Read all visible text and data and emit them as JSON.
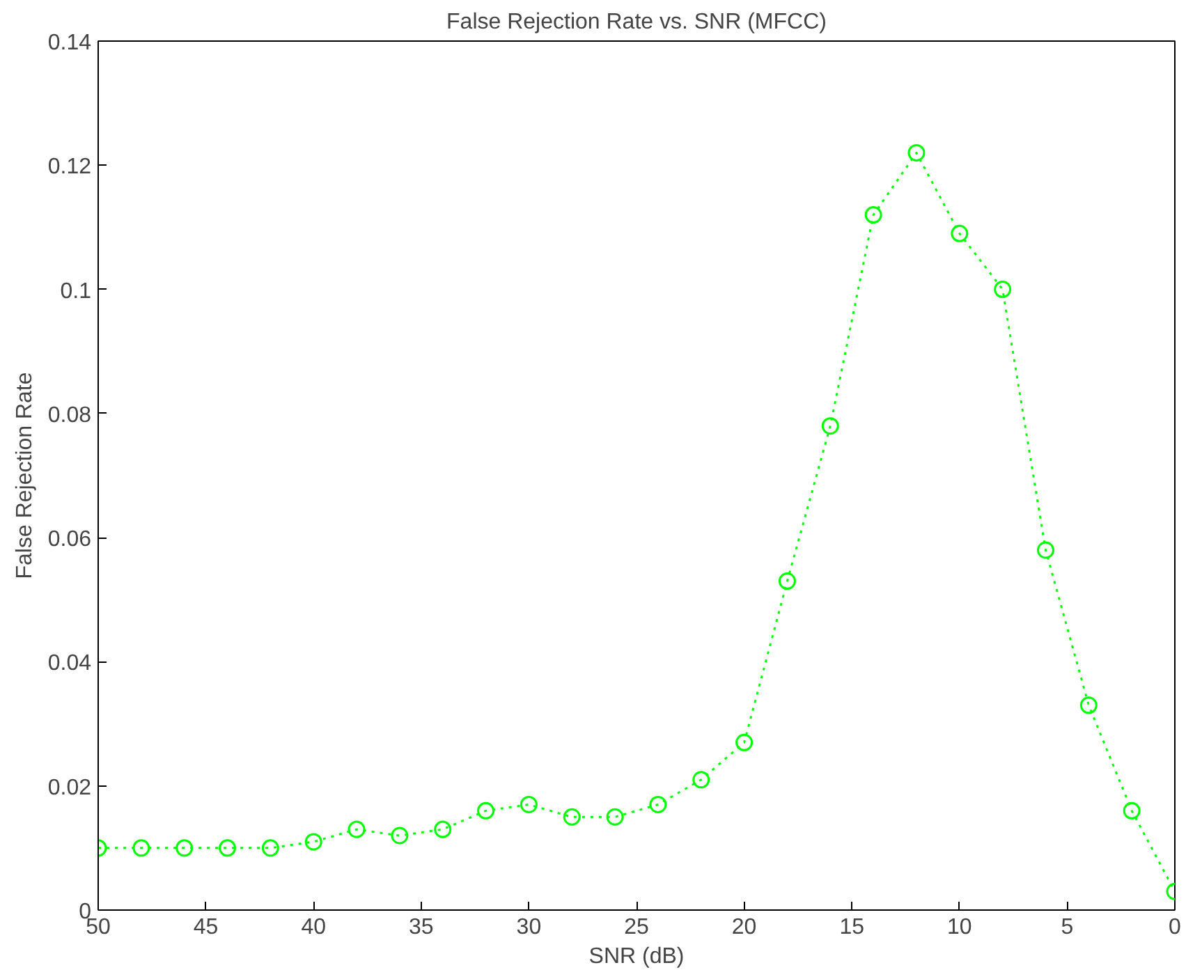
{
  "chart_data": {
    "type": "line",
    "title": "False Rejection Rate vs. SNR (MFCC)",
    "xlabel": "SNR (dB)",
    "ylabel": "False Rejection Rate",
    "x": [
      50,
      48,
      46,
      44,
      42,
      40,
      38,
      36,
      34,
      32,
      30,
      28,
      26,
      24,
      22,
      20,
      18,
      16,
      14,
      12,
      10,
      8,
      6,
      4,
      2,
      0
    ],
    "series": [
      {
        "color": "#00ff00",
        "values": [
          0.01,
          0.01,
          0.01,
          0.01,
          0.01,
          0.011,
          0.013,
          0.012,
          0.013,
          0.016,
          0.017,
          0.015,
          0.015,
          0.017,
          0.021,
          0.027,
          0.053,
          0.078,
          0.112,
          0.122,
          0.109,
          0.1,
          0.058,
          0.033,
          0.016,
          0.003
        ]
      }
    ],
    "xlim": [
      50,
      0
    ],
    "xticks": [
      50,
      45,
      40,
      35,
      30,
      25,
      20,
      15,
      10,
      5,
      0
    ],
    "ylim": [
      0,
      0.14
    ],
    "yticks": [
      0,
      0.02,
      0.04,
      0.06,
      0.08,
      0.1,
      0.12,
      0.14
    ],
    "grid": false,
    "marker": "circle",
    "line_style": "dotted"
  }
}
